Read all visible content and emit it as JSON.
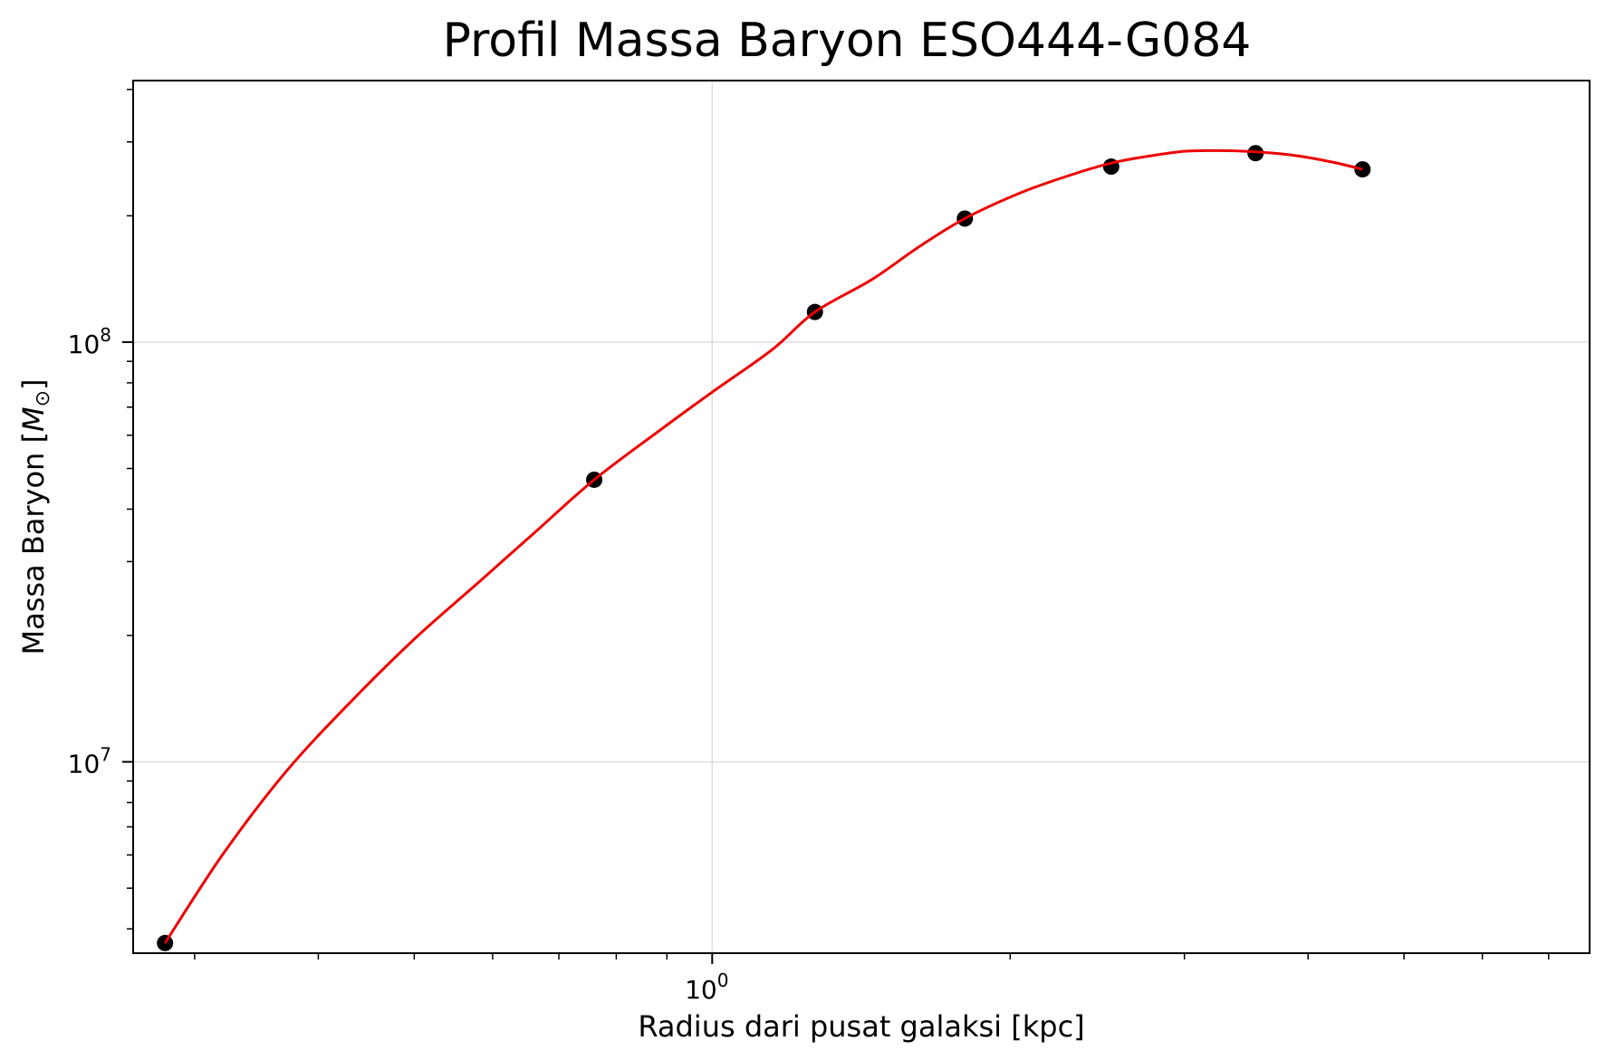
{
  "chart_data": {
    "type": "scatter",
    "title": "Profil Massa Baryon ESO444-G084",
    "xlabel": "Radius dari pusat galaksi [kpc]",
    "ylabel_text": "Massa Baryon [",
    "ylabel_math": "M",
    "ylabel_sub": "⊙",
    "ylabel_close": "]",
    "xscale": "log",
    "yscale": "log",
    "xlim": [
      0.26,
      7.7
    ],
    "ylim": [
      3500000,
      420000000
    ],
    "grid": true,
    "x_ticks": [
      {
        "value": 1,
        "base": "10",
        "exp": "0"
      }
    ],
    "y_ticks": [
      {
        "value": 10000000,
        "base": "10",
        "exp": "7"
      },
      {
        "value": 100000000,
        "base": "10",
        "exp": "8"
      }
    ],
    "series": [
      {
        "kind": "points",
        "color": "#000000",
        "x": [
          0.28,
          0.76,
          1.27,
          1.8,
          2.53,
          3.54,
          4.54
        ],
        "y": [
          3700000,
          47000000,
          118000000,
          197000000,
          262000000,
          282000000,
          258000000
        ]
      },
      {
        "kind": "fit_curve",
        "color": "#ee0000",
        "x": [
          0.28,
          0.32,
          0.37,
          0.43,
          0.5,
          0.58,
          0.66,
          0.76,
          0.88,
          1.0,
          1.15,
          1.27,
          1.45,
          1.62,
          1.8,
          2.05,
          2.3,
          2.53,
          2.75,
          3.0,
          3.25,
          3.54,
          3.9,
          4.25,
          4.54
        ],
        "y": [
          3700000,
          6000000,
          9400000,
          13800000,
          19600000,
          26700000,
          35000000,
          47000000,
          61000000,
          76000000,
          96000000,
          118000000,
          141000000,
          169000000,
          197000000,
          227000000,
          250000000,
          267000000,
          277000000,
          285000000,
          286000000,
          284000000,
          278000000,
          268000000,
          258000000
        ]
      }
    ]
  }
}
